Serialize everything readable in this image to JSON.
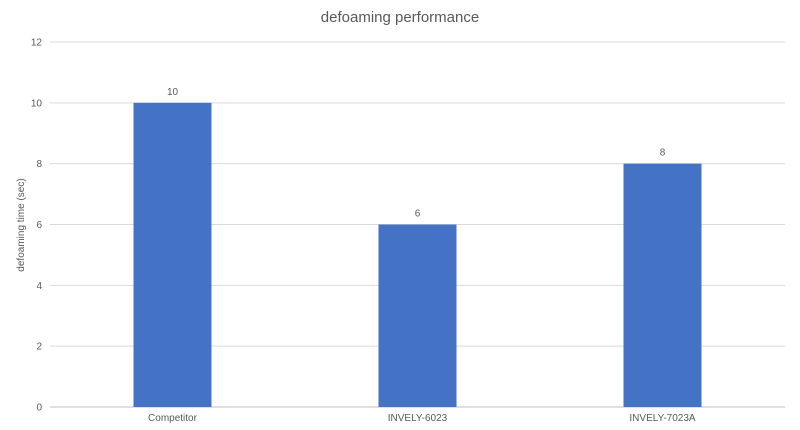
{
  "chart_data": {
    "type": "bar",
    "title": "defoaming performance",
    "xlabel": "",
    "ylabel": "defoaming time (sec)",
    "categories": [
      "Competitor",
      "INVELY-6023",
      "INVELY-7023A"
    ],
    "values": [
      10,
      6,
      8
    ],
    "data_labels": [
      "10",
      "6",
      "8"
    ],
    "ylim": [
      0,
      12
    ],
    "yticks": [
      "0",
      "2",
      "4",
      "6",
      "8",
      "10",
      "12"
    ],
    "grid": true,
    "legend": "none",
    "bar_color": "#4472C4",
    "grid_color": "#D9D9D9",
    "text_color": "#595959"
  }
}
